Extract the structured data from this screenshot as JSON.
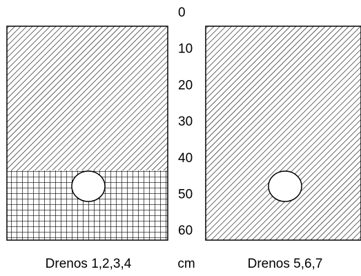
{
  "scale": {
    "ticks": [
      0,
      10,
      20,
      30,
      40,
      50,
      60
    ],
    "unit": "cm"
  },
  "panels": [
    {
      "label": "Drenos 1,2,3,4"
    },
    {
      "label": "Drenos 5,6,7"
    }
  ]
}
